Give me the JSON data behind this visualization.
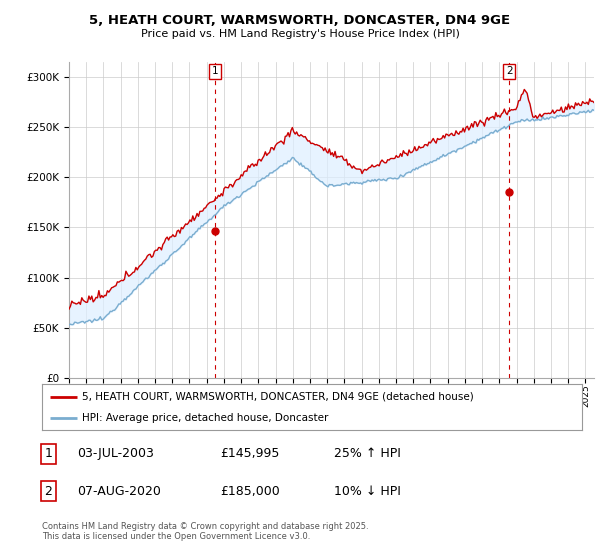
{
  "title_line1": "5, HEATH COURT, WARMSWORTH, DONCASTER, DN4 9GE",
  "title_line2": "Price paid vs. HM Land Registry's House Price Index (HPI)",
  "ylabel_ticks": [
    "£0",
    "£50K",
    "£100K",
    "£150K",
    "£200K",
    "£250K",
    "£300K"
  ],
  "ytick_values": [
    0,
    50000,
    100000,
    150000,
    200000,
    250000,
    300000
  ],
  "ylim": [
    0,
    315000
  ],
  "xlim_start": 1995.0,
  "xlim_end": 2025.5,
  "line1_color": "#cc0000",
  "line2_color": "#7aadcf",
  "fill_color": "#ddeeff",
  "marker1_date": 2003.5,
  "marker1_value": 145995,
  "marker2_date": 2020.58,
  "marker2_value": 185000,
  "legend_line1": "5, HEATH COURT, WARMSWORTH, DONCASTER, DN4 9GE (detached house)",
  "legend_line2": "HPI: Average price, detached house, Doncaster",
  "annotation1": [
    "1",
    "03-JUL-2003",
    "£145,995",
    "25% ↑ HPI"
  ],
  "annotation2": [
    "2",
    "07-AUG-2020",
    "£185,000",
    "10% ↓ HPI"
  ],
  "footnote": "Contains HM Land Registry data © Crown copyright and database right 2025.\nThis data is licensed under the Open Government Licence v3.0.",
  "background_color": "#ffffff",
  "grid_color": "#cccccc"
}
